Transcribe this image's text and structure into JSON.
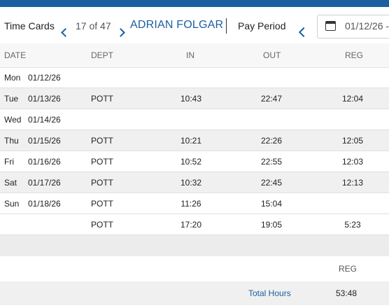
{
  "header": {
    "title": "Time Cards",
    "record_counter": "17 of 47",
    "employee_name": "ADRIAN FOLGAR",
    "pay_period_label": "Pay Period",
    "pay_period_start": "01/12/26 -"
  },
  "columns": {
    "date": "DATE",
    "dept": "DEPT",
    "in": "IN",
    "out": "OUT",
    "reg": "REG"
  },
  "rows": [
    {
      "day": "Mon",
      "date": "01/12/26",
      "dept": "",
      "in": "",
      "out": "",
      "reg": ""
    },
    {
      "day": "Tue",
      "date": "01/13/26",
      "dept": "POTT",
      "in": "10:43",
      "out": "22:47",
      "reg": "12:04"
    },
    {
      "day": "Wed",
      "date": "01/14/26",
      "dept": "",
      "in": "",
      "out": "",
      "reg": ""
    },
    {
      "day": "Thu",
      "date": "01/15/26",
      "dept": "POTT",
      "in": "10:21",
      "out": "22:26",
      "reg": "12:05"
    },
    {
      "day": "Fri",
      "date": "01/16/26",
      "dept": "POTT",
      "in": "10:52",
      "out": "22:55",
      "reg": "12:03"
    },
    {
      "day": "Sat",
      "date": "01/17/26",
      "dept": "POTT",
      "in": "10:32",
      "out": "22:45",
      "reg": "12:13"
    },
    {
      "day": "Sun",
      "date": "01/18/26",
      "dept": "POTT",
      "in": "11:26",
      "out": "15:04",
      "reg": ""
    },
    {
      "day": "",
      "date": "",
      "dept": "POTT",
      "in": "17:20",
      "out": "19:05",
      "reg": "5:23"
    }
  ],
  "summary": {
    "reg_header": "REG",
    "total_label": "Total Hours",
    "total_reg": "53:48"
  },
  "colors": {
    "accent": "#1b5fa0",
    "row_shade": "#f0f0f0"
  }
}
